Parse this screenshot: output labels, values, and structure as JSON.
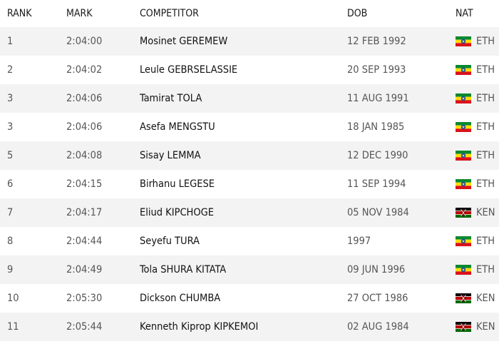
{
  "columns": {
    "rank": "RANK",
    "mark": "MARK",
    "competitor": "COMPETITOR",
    "dob": "DOB",
    "nat": "NAT"
  },
  "rows": [
    {
      "rank": "1",
      "mark": "2:04:00",
      "competitor": "Mosinet GEREMEW",
      "dob": "12 FEB 1992",
      "nat": "ETH",
      "flag": "ethiopia-flag-icon"
    },
    {
      "rank": "2",
      "mark": "2:04:02",
      "competitor": "Leule GEBRSELASSIE",
      "dob": "20 SEP 1993",
      "nat": "ETH",
      "flag": "ethiopia-flag-icon"
    },
    {
      "rank": "3",
      "mark": "2:04:06",
      "competitor": "Tamirat TOLA",
      "dob": "11 AUG 1991",
      "nat": "ETH",
      "flag": "ethiopia-flag-icon"
    },
    {
      "rank": "3",
      "mark": "2:04:06",
      "competitor": "Asefa MENGSTU",
      "dob": "18 JAN 1985",
      "nat": "ETH",
      "flag": "ethiopia-flag-icon"
    },
    {
      "rank": "5",
      "mark": "2:04:08",
      "competitor": "Sisay LEMMA",
      "dob": "12 DEC 1990",
      "nat": "ETH",
      "flag": "ethiopia-flag-icon"
    },
    {
      "rank": "6",
      "mark": "2:04:15",
      "competitor": "Birhanu LEGESE",
      "dob": "11 SEP 1994",
      "nat": "ETH",
      "flag": "ethiopia-flag-icon"
    },
    {
      "rank": "7",
      "mark": "2:04:17",
      "competitor": "Eliud KIPCHOGE",
      "dob": "05 NOV 1984",
      "nat": "KEN",
      "flag": "kenya-flag-icon"
    },
    {
      "rank": "8",
      "mark": "2:04:44",
      "competitor": "Seyefu TURA",
      "dob": "1997",
      "nat": "ETH",
      "flag": "ethiopia-flag-icon"
    },
    {
      "rank": "9",
      "mark": "2:04:49",
      "competitor": "Tola SHURA KITATA",
      "dob": "09 JUN 1996",
      "nat": "ETH",
      "flag": "ethiopia-flag-icon"
    },
    {
      "rank": "10",
      "mark": "2:05:30",
      "competitor": "Dickson CHUMBA",
      "dob": "27 OCT 1986",
      "nat": "KEN",
      "flag": "kenya-flag-icon"
    },
    {
      "rank": "11",
      "mark": "2:05:44",
      "competitor": "Kenneth Kiprop KIPKEMOI",
      "dob": "02 AUG 1984",
      "nat": "KEN",
      "flag": "kenya-flag-icon"
    }
  ],
  "colors": {
    "row_alt": "#f3f3f3",
    "row_base": "#ffffff",
    "eth_green": "#078930",
    "eth_yellow": "#fcdd09",
    "eth_red": "#da121a",
    "eth_blue": "#0f47af",
    "ken_black": "#000000",
    "ken_red": "#bb0000",
    "ken_green": "#006600"
  }
}
